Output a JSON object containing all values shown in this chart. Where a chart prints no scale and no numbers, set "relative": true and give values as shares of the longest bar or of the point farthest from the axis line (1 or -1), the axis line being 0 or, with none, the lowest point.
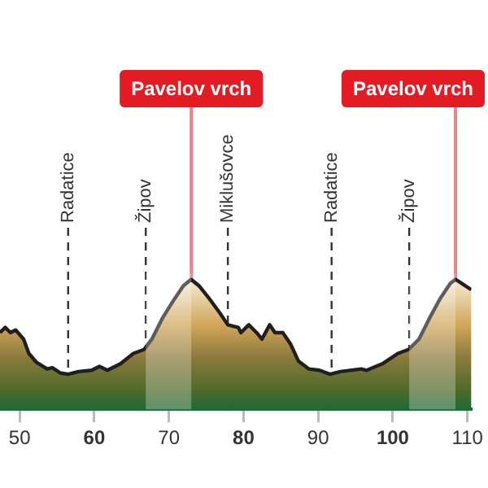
{
  "chart_data": {
    "type": "area",
    "relative": true,
    "x": [
      47.37,
      48.07,
      48.77,
      49.47,
      50.53,
      51.23,
      52.28,
      53.68,
      54.39,
      55.44,
      56.49,
      57.89,
      59.65,
      60.7,
      61.75,
      63.51,
      65.26,
      66.67,
      67.72,
      69.12,
      70.53,
      71.93,
      72.98,
      74.04,
      75.44,
      76.84,
      77.89,
      79.3,
      79.65,
      80.7,
      81.75,
      82.46,
      83.51,
      84.21,
      85.26,
      86.32,
      87.37,
      88.77,
      90.18,
      91.58,
      92.98,
      95.79,
      96.49,
      98.6,
      100.7,
      102.11,
      103.51,
      104.91,
      106.32,
      107.72,
      108.42,
      109.47,
      110.53
    ],
    "series": [
      {
        "color": "#8c7a3c",
        "values": [
          0.59,
          0.63,
          0.59,
          0.61,
          0.54,
          0.43,
          0.36,
          0.31,
          0.32,
          0.28,
          0.27,
          0.29,
          0.3,
          0.33,
          0.3,
          0.35,
          0.43,
          0.46,
          0.54,
          0.7,
          0.83,
          0.95,
          1,
          0.95,
          0.85,
          0.74,
          0.65,
          0.63,
          0.59,
          0.65,
          0.59,
          0.54,
          0.65,
          0.59,
          0.59,
          0.5,
          0.37,
          0.31,
          0.3,
          0.27,
          0.29,
          0.31,
          0.3,
          0.35,
          0.43,
          0.46,
          0.54,
          0.7,
          0.85,
          0.97,
          1,
          0.96,
          0.92
        ]
      }
    ],
    "xlim": [
      47.37,
      110.53
    ],
    "xticks": [
      50,
      60,
      70,
      80,
      90,
      100,
      110
    ],
    "ref_lines": [
      {
        "axis": "x",
        "value": 56.5,
        "label": "Radatice",
        "line_style": "dashed"
      },
      {
        "axis": "x",
        "value": 66.9,
        "label": "Žipov",
        "line_style": "dashed"
      },
      {
        "axis": "x",
        "value": 73.0,
        "label": "Pavelov vrch",
        "line_style": "solid",
        "color": "#e31b23"
      },
      {
        "axis": "x",
        "value": 77.9,
        "label": "Miklušovce",
        "line_style": "dashed"
      },
      {
        "axis": "x",
        "value": 91.8,
        "label": "Radatice",
        "line_style": "dashed"
      },
      {
        "axis": "x",
        "value": 102.2,
        "label": "Žipov",
        "line_style": "dashed"
      },
      {
        "axis": "x",
        "value": 108.4,
        "label": "Pavelov vrch",
        "line_style": "solid",
        "color": "#e31b23"
      }
    ],
    "bands": [
      {
        "axis": "x",
        "from": 66.9,
        "to": 73.0,
        "color": "#ffffff"
      },
      {
        "axis": "x",
        "from": 102.2,
        "to": 108.4,
        "color": "#ffffff"
      }
    ],
    "legend": false,
    "grid": false
  }
}
